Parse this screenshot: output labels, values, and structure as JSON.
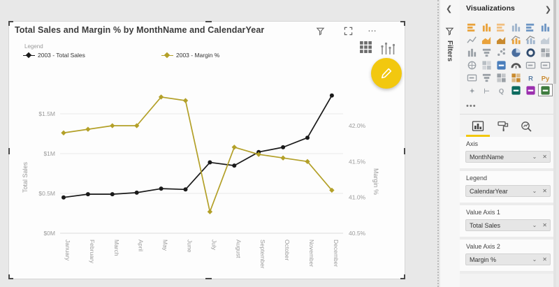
{
  "visual": {
    "title": "Total Sales and Margin % by MonthName and CalendarYear",
    "toolbar": {
      "more_label": "…"
    },
    "legend": {
      "title": "Legend",
      "items": [
        {
          "label": "2003 - Total Sales",
          "color": "#1a1a1a",
          "marker": "diamond"
        },
        {
          "label": "2003 - Margin %",
          "color": "#b3a028",
          "marker": "diamond"
        }
      ]
    }
  },
  "chart_data": {
    "type": "line",
    "title": "Total Sales and Margin % by MonthName and CalendarYear",
    "categories": [
      "January",
      "February",
      "March",
      "April",
      "May",
      "June",
      "July",
      "August",
      "September",
      "October",
      "November",
      "December"
    ],
    "series": [
      {
        "name": "2003 - Total Sales",
        "axis": "left",
        "color": "#1a1a1a",
        "values": [
          0.45,
          0.49,
          0.49,
          0.51,
          0.56,
          0.55,
          0.89,
          0.85,
          1.02,
          1.08,
          1.2,
          1.73
        ]
      },
      {
        "name": "2003 - Margin %",
        "axis": "right",
        "color": "#b3a028",
        "values": [
          41.9,
          41.95,
          42.0,
          42.0,
          42.4,
          42.35,
          40.8,
          41.7,
          41.6,
          41.55,
          41.5,
          41.1
        ]
      }
    ],
    "left_axis": {
      "title": "Total Sales",
      "tick_labels": [
        "$1.5M",
        "$1M",
        "$0.5M",
        "$0M"
      ],
      "tick_values": [
        1.5,
        1.0,
        0.5,
        0.0
      ],
      "unit": "$M"
    },
    "right_axis": {
      "title": "Margin %",
      "tick_labels": [
        "42.0%",
        "41.5%",
        "41.0%",
        "40.5%"
      ],
      "tick_values": [
        42.0,
        41.5,
        41.0,
        40.5
      ],
      "unit": "%"
    },
    "grid": true,
    "legend_position": "top"
  },
  "filters_pane": {
    "title": "Filters",
    "expand_glyph": "❮"
  },
  "visualizations_pane": {
    "title": "Visualizations",
    "collapse_glyph": "❯",
    "gallery_more_label": "•••",
    "gallery": [
      {
        "name": "stacked-bar-chart",
        "type": "bH",
        "color": "#E9A23B"
      },
      {
        "name": "stacked-column-chart",
        "type": "bV",
        "color": "#E9A23B"
      },
      {
        "name": "clustered-bar-chart",
        "type": "bH",
        "color": "#F1BF80"
      },
      {
        "name": "clustered-column-chart",
        "type": "bV",
        "color": "#9FB4CC"
      },
      {
        "name": "100-stacked-bar-chart",
        "type": "bH",
        "color": "#6E96C4"
      },
      {
        "name": "100-stacked-column-chart",
        "type": "bV",
        "color": "#6E96C4"
      },
      {
        "name": "line-chart",
        "type": "ln",
        "color": "#9aa0a6"
      },
      {
        "name": "area-chart",
        "type": "ar",
        "color": "#E9A23B"
      },
      {
        "name": "stacked-area-chart",
        "type": "ar",
        "color": "#C98A2E"
      },
      {
        "name": "line-and-stacked-column-chart",
        "type": "cb",
        "color": "#E9A23B"
      },
      {
        "name": "line-and-clustered-column-chart",
        "type": "cb",
        "color": "#9FB4CC"
      },
      {
        "name": "ribbon-chart",
        "type": "ar",
        "color": "#C4CDD6"
      },
      {
        "name": "waterfall-chart",
        "type": "bV",
        "color": "#9aa0a6"
      },
      {
        "name": "funnel-chart",
        "type": "fn",
        "color": "#9aa0a6"
      },
      {
        "name": "scatter-chart",
        "type": "sc",
        "color": "#9aa0a6"
      },
      {
        "name": "pie-chart",
        "type": "pi",
        "color": "#4A6E9E"
      },
      {
        "name": "donut-chart",
        "type": "dn",
        "color": "#2F4B6E"
      },
      {
        "name": "treemap",
        "type": "gd",
        "color": "#9aa0a6"
      },
      {
        "name": "map",
        "type": "co",
        "color": "#9aa0a6"
      },
      {
        "name": "filled-map",
        "type": "gd",
        "color": "#b8bec4"
      },
      {
        "name": "shape-map",
        "type": "sd",
        "color": "#4A7EBB"
      },
      {
        "name": "gauge",
        "type": "gg",
        "color": "#555555"
      },
      {
        "name": "card",
        "type": "cd",
        "color": "#9aa0a6"
      },
      {
        "name": "multi-row-card",
        "type": "cd",
        "color": "#9aa0a6"
      },
      {
        "name": "kpi",
        "type": "cd",
        "color": "#9aa0a6"
      },
      {
        "name": "slicer",
        "type": "fn",
        "color": "#9aa0a6"
      },
      {
        "name": "table",
        "type": "gd",
        "color": "#9aa0a6"
      },
      {
        "name": "matrix",
        "type": "gd",
        "color": "#C98A2E"
      },
      {
        "name": "r-script-visual",
        "type": "tx",
        "color": "#5B7FA6",
        "glyph": "R"
      },
      {
        "name": "python-visual",
        "type": "tx",
        "color": "#C98A2E",
        "glyph": "Py"
      },
      {
        "name": "key-influencers",
        "type": "tx",
        "color": "#9aa0a6",
        "glyph": "✦"
      },
      {
        "name": "decomposition-tree",
        "type": "tx",
        "color": "#9aa0a6",
        "glyph": "⊢"
      },
      {
        "name": "qa-visual",
        "type": "tx",
        "color": "#9aa0a6",
        "glyph": "Q"
      },
      {
        "name": "metrics",
        "type": "sd",
        "color": "#0B6A5E"
      },
      {
        "name": "paginated-report",
        "type": "sd",
        "color": "#9B2FAE"
      },
      {
        "name": "power-apps-visual",
        "type": "sd",
        "color": "#3E7B3E",
        "selected": true
      }
    ],
    "tabs": [
      {
        "name": "fields",
        "selected": true
      },
      {
        "name": "format",
        "selected": false
      },
      {
        "name": "analytics",
        "selected": false
      }
    ],
    "wells": [
      {
        "label": "Axis",
        "field": "MonthName"
      },
      {
        "label": "Legend",
        "field": "CalendarYear"
      },
      {
        "label": "Value Axis 1",
        "field": "Total Sales"
      },
      {
        "label": "Value Axis 2",
        "field": "Margin %"
      }
    ],
    "pill_controls": {
      "chevron": "⌄",
      "remove": "✕"
    }
  },
  "colors": {
    "accent_yellow": "#F2C80F",
    "series_sales": "#1a1a1a",
    "series_margin": "#b3a028",
    "canvas_bg": "#e8e8e8",
    "grid_line": "#e6e6e6"
  }
}
